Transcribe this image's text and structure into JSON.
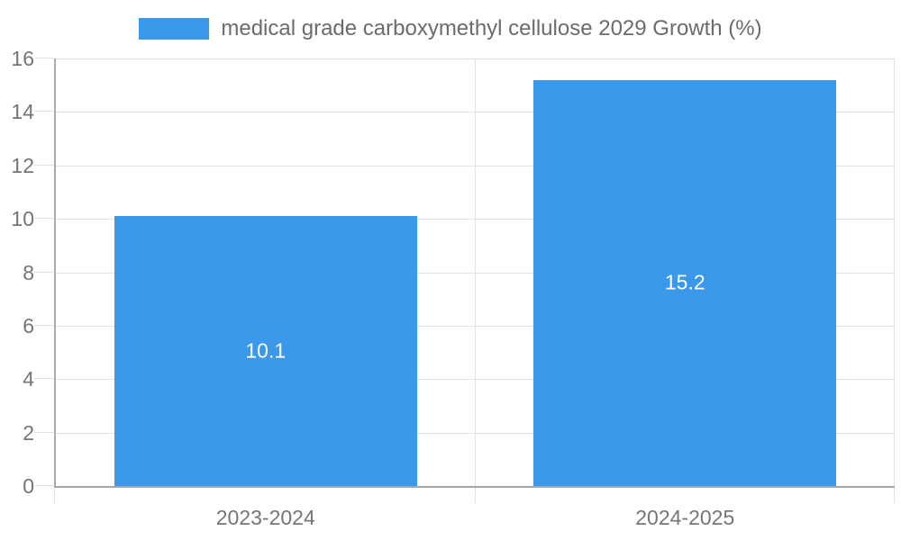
{
  "chart_data": {
    "type": "bar",
    "title": "",
    "legend": {
      "position": "top-center",
      "label": "medical grade carboxymethyl cellulose 2029 Growth (%)"
    },
    "categories": [
      "2023-2024",
      "2024-2025"
    ],
    "series": [
      {
        "name": "medical grade carboxymethyl cellulose 2029 Growth (%)",
        "values": [
          10.1,
          15.2
        ]
      }
    ],
    "value_labels": [
      "10.1",
      "15.2"
    ],
    "xlabel": "",
    "ylabel": "",
    "ylim": [
      0,
      16
    ],
    "yticks": [
      0,
      2,
      4,
      6,
      8,
      10,
      12,
      14,
      16
    ],
    "grid": true
  },
  "colors": {
    "bar": "#3b99ec",
    "grid": "#e2e2e2",
    "axis": "#ababab",
    "tick_label": "#757575",
    "value_label": "#ffffff",
    "legend_text": "#6b6b6b"
  }
}
